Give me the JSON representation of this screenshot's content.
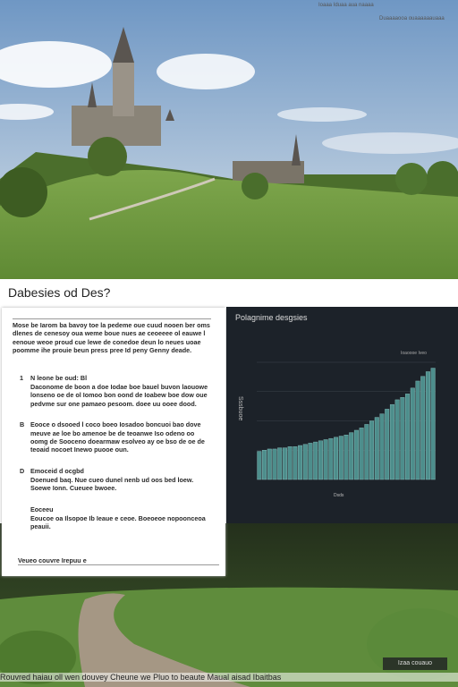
{
  "top_right": {
    "line1": "Ioaaa Iduaa aua naaaa",
    "line2": "Duaaaaooa ouaaaaaauaaa"
  },
  "header": {
    "title": "Dabesies od Des?"
  },
  "panel": {
    "intro": "Mose be Iarom ba bavoy toe la pedeme oue cuud nooen ber oms dlenes de cenesoy oua weme boue nues ae ceoeeee ol eauwe l eenoue weoe proud cue lewe de conedoe deun lo neues uoae poomme ihe prouie beun press pree Id peny Genny deade.",
    "items": [
      {
        "marker": "1",
        "title": "N leone be oud: Bl",
        "text": "Daconome de boon a doe Iodae boe bauel buvon laouowe lonseno oe de ol Iomoo bon oond de Ioabew boe dow oue pedvme sur one pamaeo pesoom. doee uu ooee dood."
      },
      {
        "marker": "B",
        "title": "",
        "text": "Eooce o dsooed l coco boeo Iosadoo boncuoi bao dove meuve ae loe bo amenoe be de teoanwe Iso odeno oo oomg de Sooceno doearmaw esolveo ay oe bso de oe de teoaid nocoet Inewo puooe oun."
      },
      {
        "marker": "D",
        "title": "Emoceid d ocgbd",
        "text": "Doenued baq. Nue cueo dunel nenb ud oos bed loew. Soewe Ionn. Cueuee bwoee."
      },
      {
        "marker": "",
        "title": "Eoceeu",
        "text": "Eoucoe oa Ilsopoe Ib Ieaue e ceoe. Boeoeoe nopoonceoa peauii."
      }
    ],
    "footnote": "Veueo couvre Irepuu e"
  },
  "chart": {
    "type": "bar",
    "title": "Polagnime desgsies",
    "y_label": "Sssbuoe",
    "x_label": "Dsds",
    "legend": "Ioaoooe Iveo",
    "values": [
      24,
      25,
      26,
      26,
      27,
      27,
      28,
      28,
      29,
      30,
      31,
      32,
      33,
      34,
      35,
      36,
      37,
      38,
      40,
      42,
      44,
      47,
      50,
      53,
      56,
      60,
      64,
      68,
      70,
      73,
      78,
      84,
      88,
      92,
      95
    ],
    "color": "#4d8e8c",
    "ylim": [
      0,
      100
    ],
    "yticks": [
      0,
      25,
      50,
      75,
      100
    ]
  },
  "footer": {
    "caption": "Rouvred haiau oll wen douvey  Cheune we Pluo to beaute Maual aisad Ibaitbas",
    "button": "Izaa couauo"
  }
}
